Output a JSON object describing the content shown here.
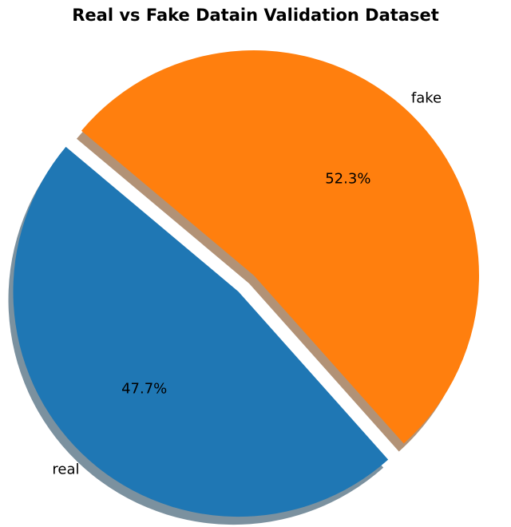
{
  "chart_data": {
    "type": "pie",
    "title": "Real vs Fake Datain Validation Dataset",
    "slices": [
      {
        "label": "real",
        "value": 47.7,
        "percent_label": "47.7%",
        "color": "#1f77b4",
        "exploded": true
      },
      {
        "label": "fake",
        "value": 52.3,
        "percent_label": "52.3%",
        "color": "#ff7f0e",
        "exploded": false
      }
    ],
    "shadow": true,
    "legend": "none"
  }
}
